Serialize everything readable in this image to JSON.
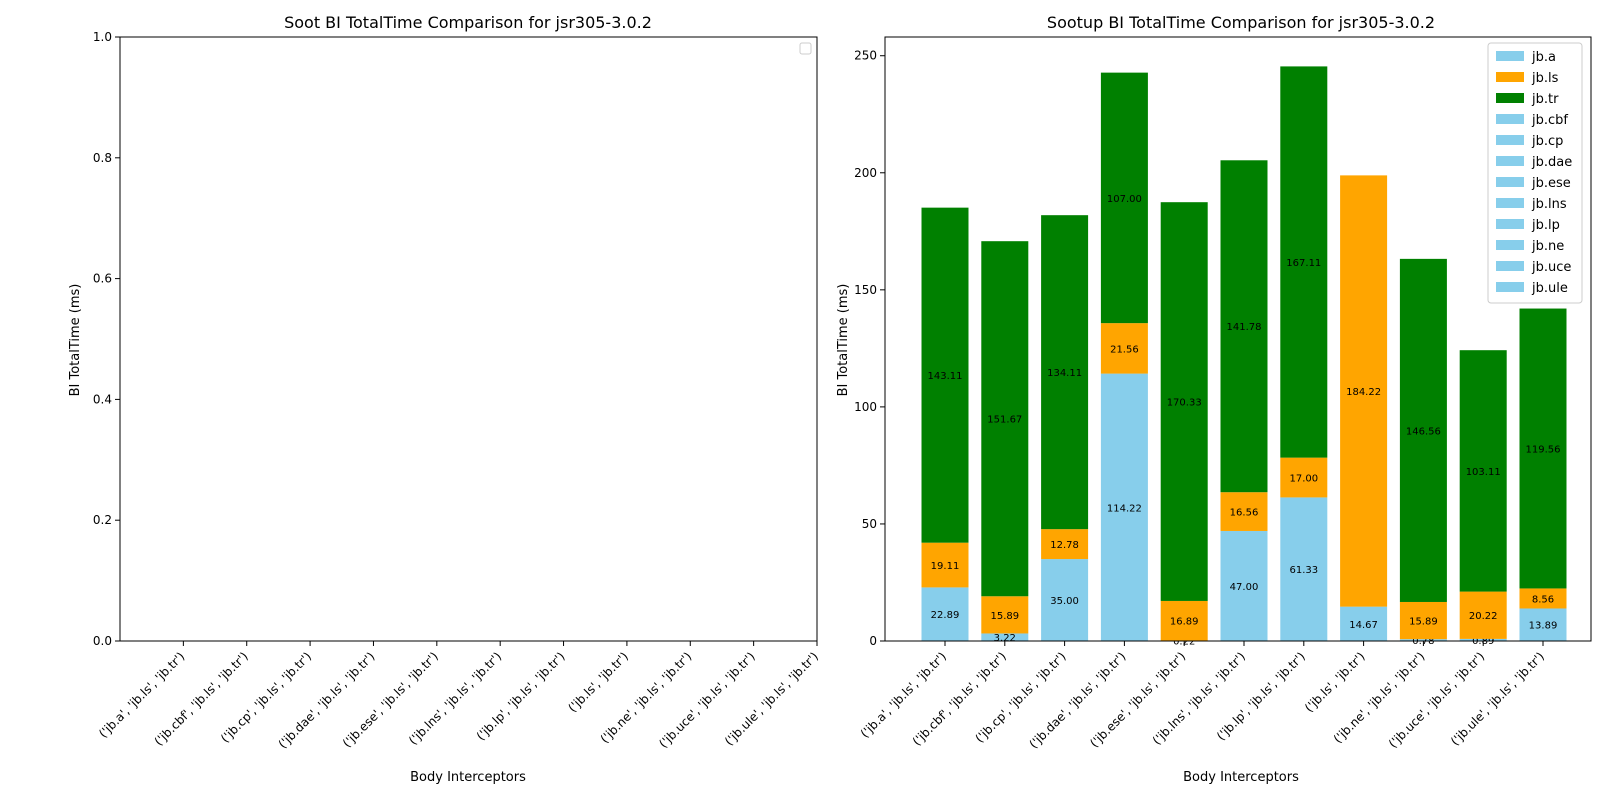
{
  "chart_data": [
    {
      "type": "bar",
      "title": "Soot BI TotalTime Comparison for jsr305-3.0.2",
      "xlabel": "Body Interceptors",
      "ylabel": "BI TotalTime (ms)",
      "ylim": [
        0,
        1.0
      ],
      "yticks": [
        "0.0",
        "0.2",
        "0.4",
        "0.6",
        "0.8",
        "1.0"
      ],
      "categories": [
        "('jb.a', 'jb.ls', 'jb.tr')",
        "('jb.cbf', 'jb.ls', 'jb.tr')",
        "('jb.cp', 'jb.ls', 'jb.tr')",
        "('jb.dae', 'jb.ls', 'jb.tr')",
        "('jb.ese', 'jb.ls', 'jb.tr')",
        "('jb.lns', 'jb.ls', 'jb.tr')",
        "('jb.lp', 'jb.ls', 'jb.tr')",
        "('jb.ls', 'jb.tr')",
        "('jb.ne', 'jb.ls', 'jb.tr')",
        "('jb.uce', 'jb.ls', 'jb.tr')",
        "('jb.ule', 'jb.ls', 'jb.tr')"
      ],
      "series": [],
      "legend": "upper right (empty)",
      "grid": false
    },
    {
      "type": "bar",
      "stacked": true,
      "title": "Sootup BI TotalTime Comparison for jsr305-3.0.2",
      "xlabel": "Body Interceptors",
      "ylabel": "BI TotalTime (ms)",
      "ylim": [
        0,
        258
      ],
      "yticks": [
        0,
        50,
        100,
        150,
        200,
        250
      ],
      "categories": [
        "('jb.a', 'jb.ls', 'jb.tr')",
        "('jb.cbf', 'jb.ls', 'jb.tr')",
        "('jb.cp', 'jb.ls', 'jb.tr')",
        "('jb.dae', 'jb.ls', 'jb.tr')",
        "('jb.ese', 'jb.ls', 'jb.tr')",
        "('jb.lns', 'jb.ls', 'jb.tr')",
        "('jb.lp', 'jb.ls', 'jb.tr')",
        "('jb.ls', 'jb.tr')",
        "('jb.ne', 'jb.ls', 'jb.tr')",
        "('jb.uce', 'jb.ls', 'jb.tr')",
        "('jb.ule', 'jb.ls', 'jb.tr')"
      ],
      "stack_values": [
        [
          22.89,
          19.11,
          143.11
        ],
        [
          3.22,
          15.89,
          151.67
        ],
        [
          35.0,
          12.78,
          134.11
        ],
        [
          114.22,
          21.56,
          107.0
        ],
        [
          0.22,
          16.89,
          170.33
        ],
        [
          47.0,
          16.56,
          141.78
        ],
        [
          61.33,
          17.0,
          167.11
        ],
        [
          14.67,
          184.22
        ],
        [
          0.78,
          15.89,
          146.56
        ],
        [
          0.89,
          20.22,
          103.11
        ],
        [
          13.89,
          8.56,
          119.56
        ]
      ],
      "stack_colors": [
        [
          "#87ceeb",
          "#ffa500",
          "#008000"
        ],
        [
          "#87ceeb",
          "#ffa500",
          "#008000"
        ],
        [
          "#87ceeb",
          "#ffa500",
          "#008000"
        ],
        [
          "#87ceeb",
          "#ffa500",
          "#008000"
        ],
        [
          "#87ceeb",
          "#ffa500",
          "#008000"
        ],
        [
          "#87ceeb",
          "#ffa500",
          "#008000"
        ],
        [
          "#87ceeb",
          "#ffa500",
          "#008000"
        ],
        [
          "#87ceeb",
          "#ffa500"
        ],
        [
          "#87ceeb",
          "#ffa500",
          "#008000"
        ],
        [
          "#87ceeb",
          "#ffa500",
          "#008000"
        ],
        [
          "#87ceeb",
          "#ffa500",
          "#008000"
        ]
      ],
      "legend_items": [
        {
          "label": "jb.a",
          "color": "#87ceeb"
        },
        {
          "label": "jb.ls",
          "color": "#ffa500"
        },
        {
          "label": "jb.tr",
          "color": "#008000"
        },
        {
          "label": "jb.cbf",
          "color": "#87ceeb"
        },
        {
          "label": "jb.cp",
          "color": "#87ceeb"
        },
        {
          "label": "jb.dae",
          "color": "#87ceeb"
        },
        {
          "label": "jb.ese",
          "color": "#87ceeb"
        },
        {
          "label": "jb.lns",
          "color": "#87ceeb"
        },
        {
          "label": "jb.lp",
          "color": "#87ceeb"
        },
        {
          "label": "jb.ne",
          "color": "#87ceeb"
        },
        {
          "label": "jb.uce",
          "color": "#87ceeb"
        },
        {
          "label": "jb.ule",
          "color": "#87ceeb"
        }
      ],
      "legend": "top-right",
      "grid": false
    }
  ]
}
